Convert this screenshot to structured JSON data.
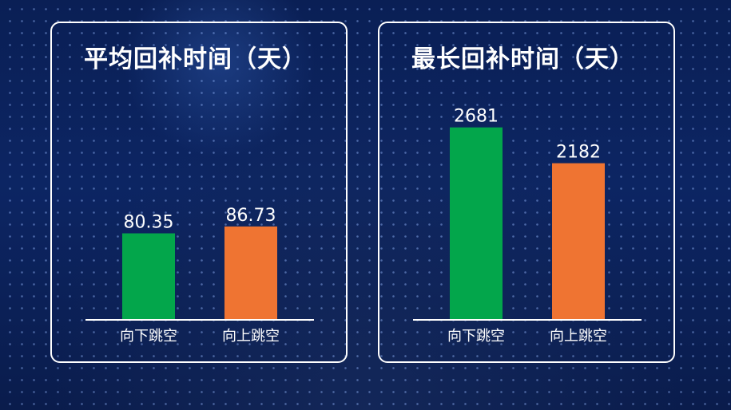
{
  "chart_data": [
    {
      "type": "bar",
      "title": "平均回补时间（天）",
      "categories": [
        "向下跳空",
        "向上跳空"
      ],
      "values": [
        80.35,
        86.73
      ],
      "value_labels": [
        "80.35",
        "86.73"
      ],
      "ylim": [
        0,
        200
      ],
      "grid": false,
      "colors": [
        "#03a64b",
        "#ef7432"
      ]
    },
    {
      "type": "bar",
      "title": "最长回补时间（天）",
      "categories": [
        "向下跳空",
        "向上跳空"
      ],
      "values": [
        2681,
        2182
      ],
      "value_labels": [
        "2681",
        "2182"
      ],
      "ylim": [
        0,
        3000
      ],
      "grid": false,
      "colors": [
        "#03a64b",
        "#ef7432"
      ]
    }
  ]
}
